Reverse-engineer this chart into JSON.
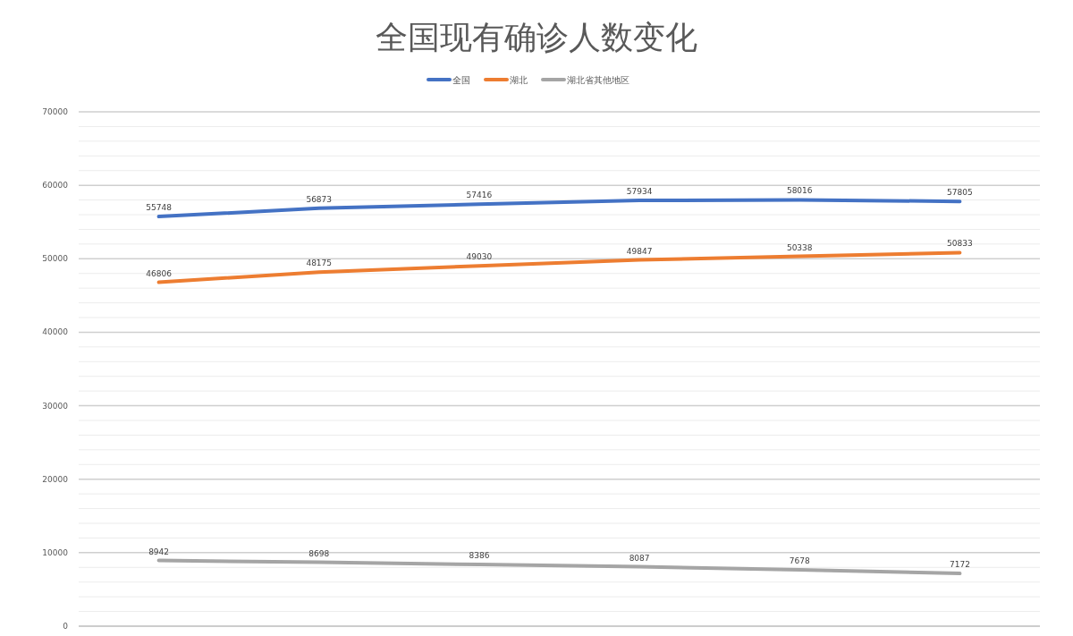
{
  "chart_data": {
    "type": "line",
    "title": "全国现有确诊人数变化",
    "categories": [
      null,
      null,
      null,
      null,
      null,
      null
    ],
    "series": [
      {
        "name": "全国",
        "color": "#4472c4",
        "values": [
          55748,
          56873,
          57416,
          57934,
          58016,
          57805
        ]
      },
      {
        "name": "湖北",
        "color": "#ed7d31",
        "values": [
          46806,
          48175,
          49030,
          49847,
          50338,
          50833
        ]
      },
      {
        "name": "湖北省其他地区",
        "color": "#a5a5a5",
        "values": [
          8942,
          8698,
          8386,
          8087,
          7678,
          7172
        ]
      }
    ],
    "ylim": [
      0,
      70000
    ],
    "yticks": [
      0,
      {
        "value": 2000,
        "label": null
      },
      {
        "value": 4000,
        "label": null
      },
      {
        "value": 6000,
        "label": null
      },
      {
        "value": 8000,
        "label": null
      },
      10000,
      {
        "value": 12000,
        "label": null
      },
      {
        "value": 14000,
        "label": null
      },
      {
        "value": 16000,
        "label": null
      },
      {
        "value": 18000,
        "label": null
      },
      20000,
      {
        "value": 22000,
        "label": null
      },
      {
        "value": 24000,
        "label": null
      },
      {
        "value": 26000,
        "label": null
      },
      {
        "value": 28000,
        "label": null
      },
      30000,
      {
        "value": 32000,
        "label": null
      },
      {
        "value": 34000,
        "label": null
      },
      {
        "value": 36000,
        "label": null
      },
      {
        "value": 38000,
        "label": null
      },
      40000,
      {
        "value": 42000,
        "label": null
      },
      {
        "value": 44000,
        "label": null
      },
      {
        "value": 46000,
        "label": null
      },
      {
        "value": 48000,
        "label": null
      },
      50000,
      {
        "value": 52000,
        "label": null
      },
      {
        "value": 54000,
        "label": null
      },
      {
        "value": 56000,
        "label": null
      },
      {
        "value": 58000,
        "label": null
      },
      60000,
      {
        "value": 62000,
        "label": null
      },
      {
        "value": 64000,
        "label": null
      },
      {
        "value": 66000,
        "label": null
      },
      {
        "value": 68000,
        "label": null
      },
      70000
    ],
    "grid": "y",
    "legend": "top",
    "data_labels": true,
    "marker": "none",
    "line_style": "solid"
  }
}
